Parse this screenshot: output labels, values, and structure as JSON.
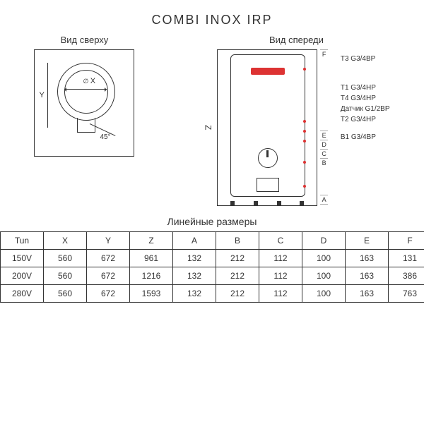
{
  "title": "COMBI INOX IRP",
  "views": {
    "top_label": "Вид сверху",
    "front_label": "Вид спереди",
    "x_label": "X",
    "y_label": "Y",
    "z_label": "Z",
    "angle_label": "45°"
  },
  "port_labels": {
    "t3": "T3 G3/4ВР",
    "t1": "T1 G3/4НР",
    "t4": "T4 G3/4НР",
    "sensor": "Датчик G1/2ВР",
    "t2": "T2 G3/4НР",
    "b1": "B1 G3/4ВР"
  },
  "dimension_letters": {
    "a": "A",
    "b": "B",
    "c": "C",
    "d": "D",
    "e": "E",
    "f": "F"
  },
  "table": {
    "title": "Линейные размеры",
    "columns": [
      "Tun",
      "X",
      "Y",
      "Z",
      "A",
      "B",
      "C",
      "D",
      "E",
      "F"
    ],
    "rows": [
      [
        "150V",
        "560",
        "672",
        "961",
        "132",
        "212",
        "112",
        "100",
        "163",
        "131"
      ],
      [
        "200V",
        "560",
        "672",
        "1216",
        "132",
        "212",
        "112",
        "100",
        "163",
        "386"
      ],
      [
        "280V",
        "560",
        "672",
        "1593",
        "132",
        "212",
        "112",
        "100",
        "163",
        "763"
      ]
    ]
  },
  "style": {
    "accent_color": "#d33333",
    "border_color": "#333333",
    "background_color": "#ffffff",
    "text_color": "#333333",
    "cell_padding": "5px 10px",
    "table_border_width": 1.5,
    "title_fontsize": 18,
    "label_fontsize": 13,
    "port_fontsize": 10,
    "table_fontsize": 12
  }
}
